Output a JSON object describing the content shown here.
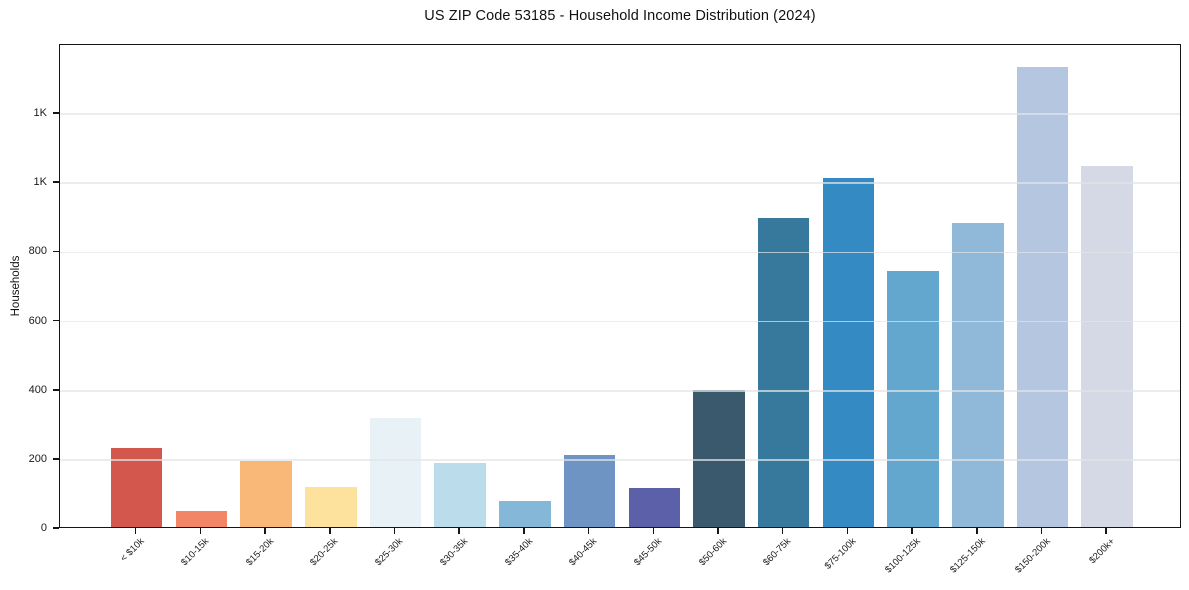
{
  "chart_data": {
    "type": "bar",
    "title": "US ZIP Code 53185 - Household Income Distribution (2024)",
    "xlabel": "",
    "ylabel": "Households",
    "ylim": [
      0,
      1400
    ],
    "grid": true,
    "legend": "none",
    "categories": [
      "< $10k",
      "$10-15k",
      "$15-20k",
      "$20-25k",
      "$25-30k",
      "$30-35k",
      "$35-40k",
      "$40-45k",
      "$45-50k",
      "$50-60k",
      "$60-75k",
      "$75-100k",
      "$100-125k",
      "$125-150k",
      "$150-200k",
      "$200k+"
    ],
    "values": [
      230,
      45,
      190,
      117,
      315,
      186,
      74,
      208,
      114,
      396,
      894,
      1010,
      740,
      879,
      1331,
      1043
    ],
    "bar_colors": [
      "#d4574e",
      "#f28565",
      "#fab878",
      "#fde29e",
      "#e7f1f6",
      "#bbddeb",
      "#85b8d8",
      "#6e94c4",
      "#5b60a9",
      "#3b596c",
      "#36799d",
      "#348ac3",
      "#63a6ce",
      "#90b8d8",
      "#b5c7e0",
      "#d5d8e5"
    ],
    "y_ticks": [
      {
        "value": 0,
        "label": "0"
      },
      {
        "value": 200,
        "label": "200"
      },
      {
        "value": 400,
        "label": "400"
      },
      {
        "value": 600,
        "label": "600"
      },
      {
        "value": 800,
        "label": "800"
      },
      {
        "value": 1000,
        "label": "1K"
      },
      {
        "value": 1200,
        "label": "1K"
      }
    ]
  },
  "colors": {
    "background": "#ffffff",
    "spine": "#151515",
    "grid": "#e4e6e8",
    "text": "#1a1a1a"
  }
}
